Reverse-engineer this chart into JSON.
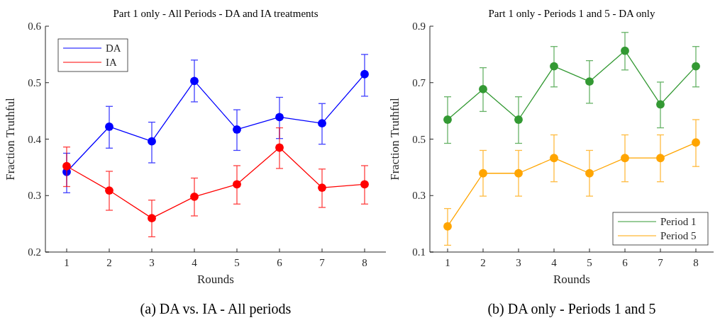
{
  "chart_data": [
    {
      "type": "line",
      "title": "Part 1 only - All Periods - DA and IA treatments",
      "xlabel": "Rounds",
      "ylabel": "Fraction Truthful",
      "annotations": [
        "(a) DA vs. IA - All periods"
      ],
      "x": [
        1,
        2,
        3,
        4,
        5,
        6,
        7,
        8
      ],
      "xlim": [
        0.5,
        8.5
      ],
      "xticks": [
        1,
        2,
        3,
        4,
        5,
        6,
        7,
        8
      ],
      "ylim": [
        0.2,
        0.6
      ],
      "yticks": [
        0.2,
        0.3,
        0.4,
        0.5,
        0.6
      ],
      "series": [
        {
          "name": "DA",
          "color": "#0000ff",
          "values": [
            0.342,
            0.422,
            0.396,
            0.503,
            0.417,
            0.439,
            0.428,
            0.515
          ],
          "errors": [
            [
              0.305,
              0.375
            ],
            [
              0.384,
              0.458
            ],
            [
              0.358,
              0.43
            ],
            [
              0.466,
              0.54
            ],
            [
              0.38,
              0.452
            ],
            [
              0.401,
              0.474
            ],
            [
              0.391,
              0.463
            ],
            [
              0.476,
              0.55
            ]
          ]
        },
        {
          "name": "IA",
          "color": "#ff0000",
          "values": [
            0.352,
            0.309,
            0.26,
            0.298,
            0.32,
            0.385,
            0.314,
            0.32
          ],
          "errors": [
            [
              0.316,
              0.386
            ],
            [
              0.274,
              0.343
            ],
            [
              0.227,
              0.292
            ],
            [
              0.264,
              0.331
            ],
            [
              0.285,
              0.353
            ],
            [
              0.348,
              0.42
            ],
            [
              0.279,
              0.347
            ],
            [
              0.285,
              0.353
            ]
          ]
        }
      ],
      "legend": "top left",
      "grid": false,
      "marker": "circle",
      "line_style": "solid"
    },
    {
      "type": "line",
      "title": "Part 1 only - Periods 1 and 5 - DA only",
      "xlabel": "Rounds",
      "ylabel": "Fraction Truthful",
      "annotations": [
        "(b) DA only - Periods 1 and 5"
      ],
      "x": [
        1,
        2,
        3,
        4,
        5,
        6,
        7,
        8
      ],
      "xlim": [
        0.5,
        8.5
      ],
      "xticks": [
        1,
        2,
        3,
        4,
        5,
        6,
        7,
        8
      ],
      "ylim": [
        0.1,
        0.9
      ],
      "yticks": [
        0.1,
        0.3,
        0.5,
        0.7,
        0.9
      ],
      "series": [
        {
          "name": "Period 1",
          "color": "#339933",
          "values": [
            0.569,
            0.677,
            0.569,
            0.758,
            0.704,
            0.813,
            0.623,
            0.758
          ],
          "errors": [
            [
              0.485,
              0.65
            ],
            [
              0.598,
              0.753
            ],
            [
              0.485,
              0.65
            ],
            [
              0.685,
              0.828
            ],
            [
              0.627,
              0.778
            ],
            [
              0.745,
              0.878
            ],
            [
              0.54,
              0.702
            ],
            [
              0.685,
              0.828
            ]
          ]
        },
        {
          "name": "Period 5",
          "color": "#ffa500",
          "values": [
            0.191,
            0.379,
            0.379,
            0.433,
            0.379,
            0.433,
            0.433,
            0.488
          ],
          "errors": [
            [
              0.124,
              0.254
            ],
            [
              0.298,
              0.46
            ],
            [
              0.298,
              0.46
            ],
            [
              0.349,
              0.515
            ],
            [
              0.298,
              0.46
            ],
            [
              0.349,
              0.515
            ],
            [
              0.349,
              0.515
            ],
            [
              0.403,
              0.569
            ]
          ]
        }
      ],
      "legend": "bottom right",
      "grid": false,
      "marker": "circle",
      "line_style": "solid"
    }
  ]
}
